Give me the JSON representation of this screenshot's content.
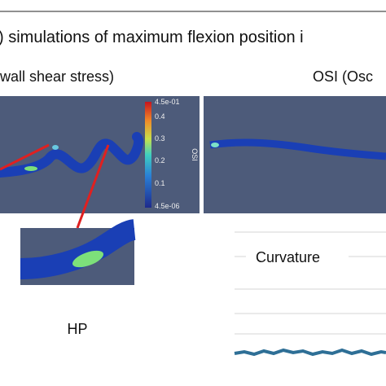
{
  "header": {
    "title": ") simulations of maximum flexion position i"
  },
  "panels": {
    "left_label": "wall shear stress)",
    "right_label": "OSI (Osc"
  },
  "colorbar": {
    "title": "OSI",
    "ticks": [
      "4.5e-01",
      "0.4",
      "0.3",
      "0.2",
      "0.1",
      "4.5e-06"
    ]
  },
  "inset": {
    "label": "HP"
  },
  "plot": {
    "label": "Curvature"
  }
}
